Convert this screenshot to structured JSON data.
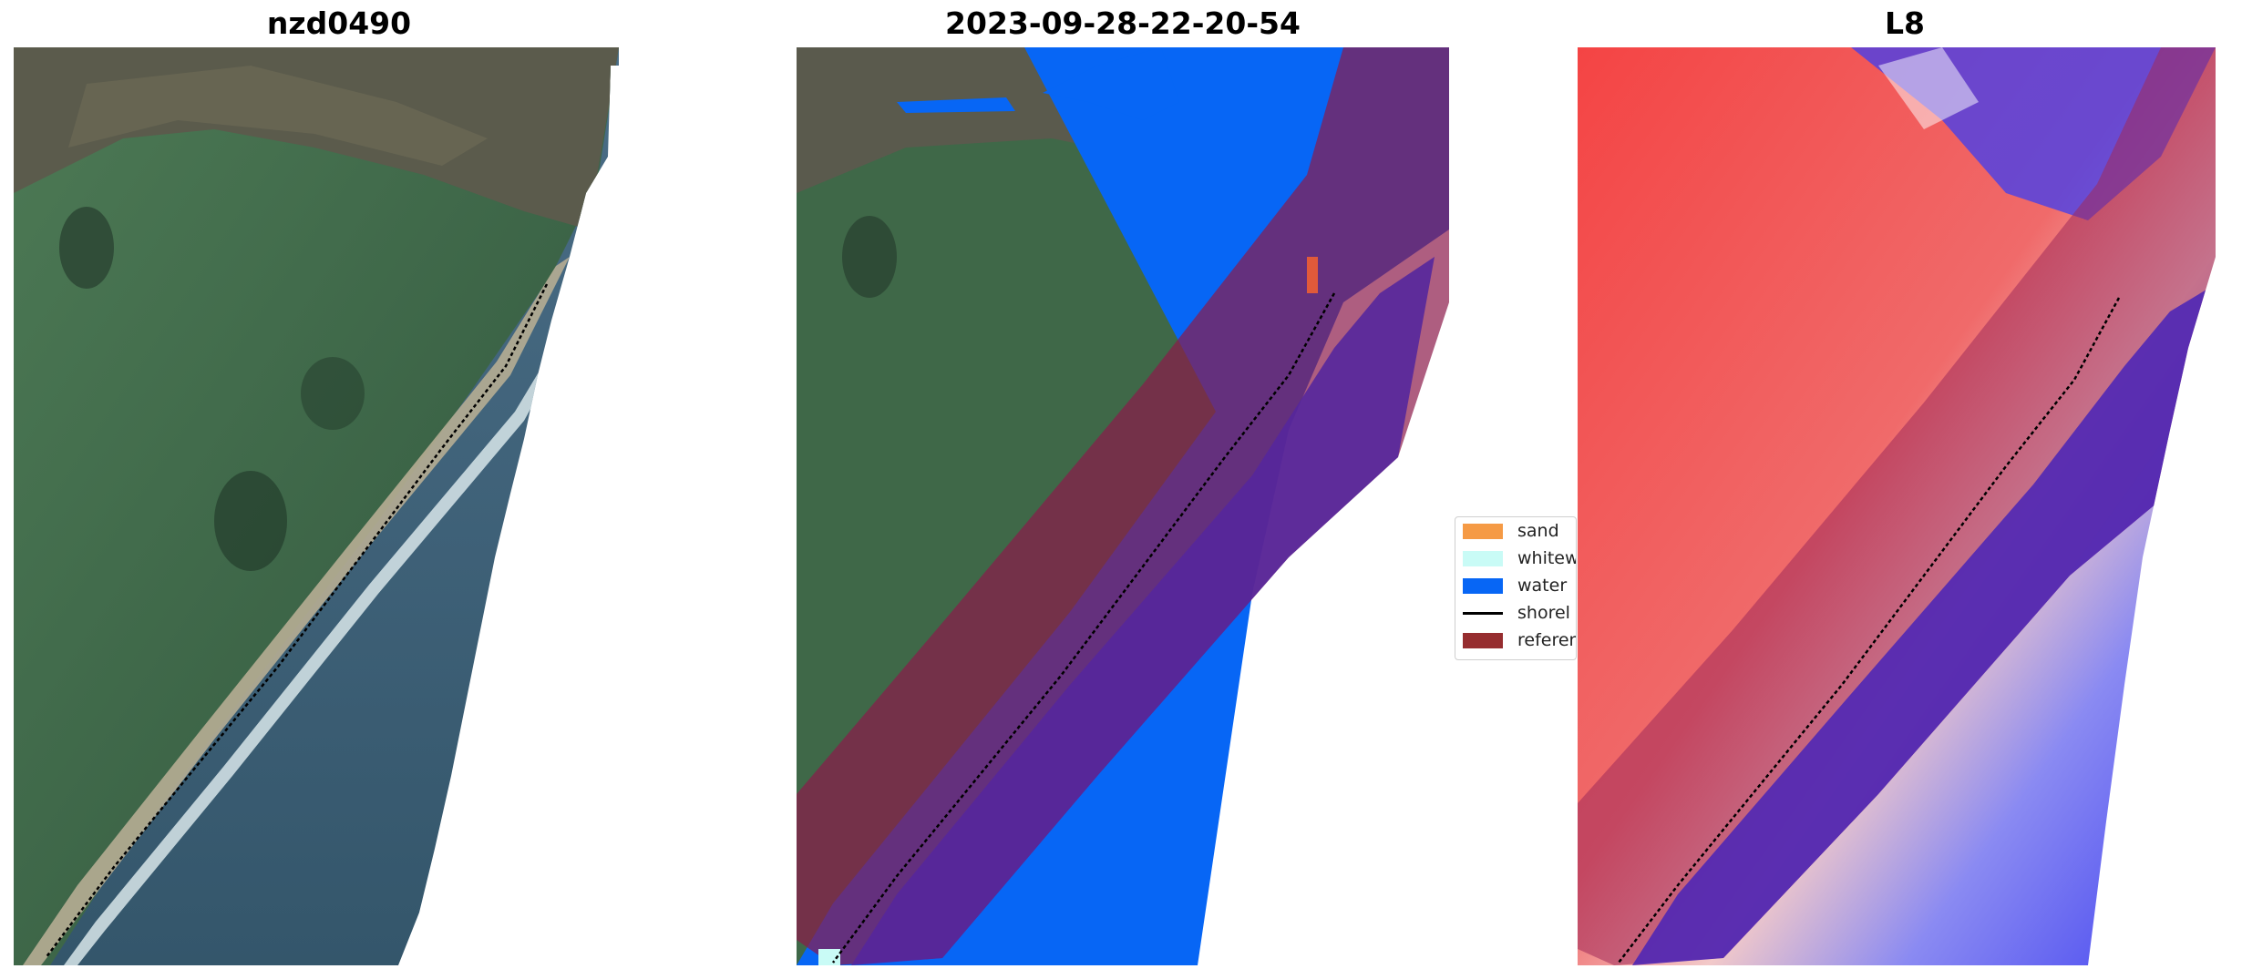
{
  "panels": [
    {
      "title": "nzd0490"
    },
    {
      "title": "2023-09-28-22-20-54"
    },
    {
      "title": "L8"
    }
  ],
  "legend": {
    "items": [
      {
        "label": "sand",
        "color": "#f59a45",
        "kind": "patch"
      },
      {
        "label": "whitew",
        "color": "#c9fbf6",
        "kind": "patch"
      },
      {
        "label": "water",
        "color": "#0766f5",
        "kind": "patch"
      },
      {
        "label": "shorel",
        "color": "#000000",
        "kind": "line"
      },
      {
        "label": "referen",
        "color": "#962d2f",
        "kind": "patch"
      }
    ]
  },
  "colors": {
    "land_green": "#3e6648",
    "hill_brown": "#5a5a4e",
    "sea_blue": "#3d5f78",
    "water_class": "#0766f5",
    "reference_overlay": "#8b1a4a",
    "overlap_purple": "#55279c",
    "index_red": "#f23a3a",
    "index_blue": "#3b3cf0"
  }
}
